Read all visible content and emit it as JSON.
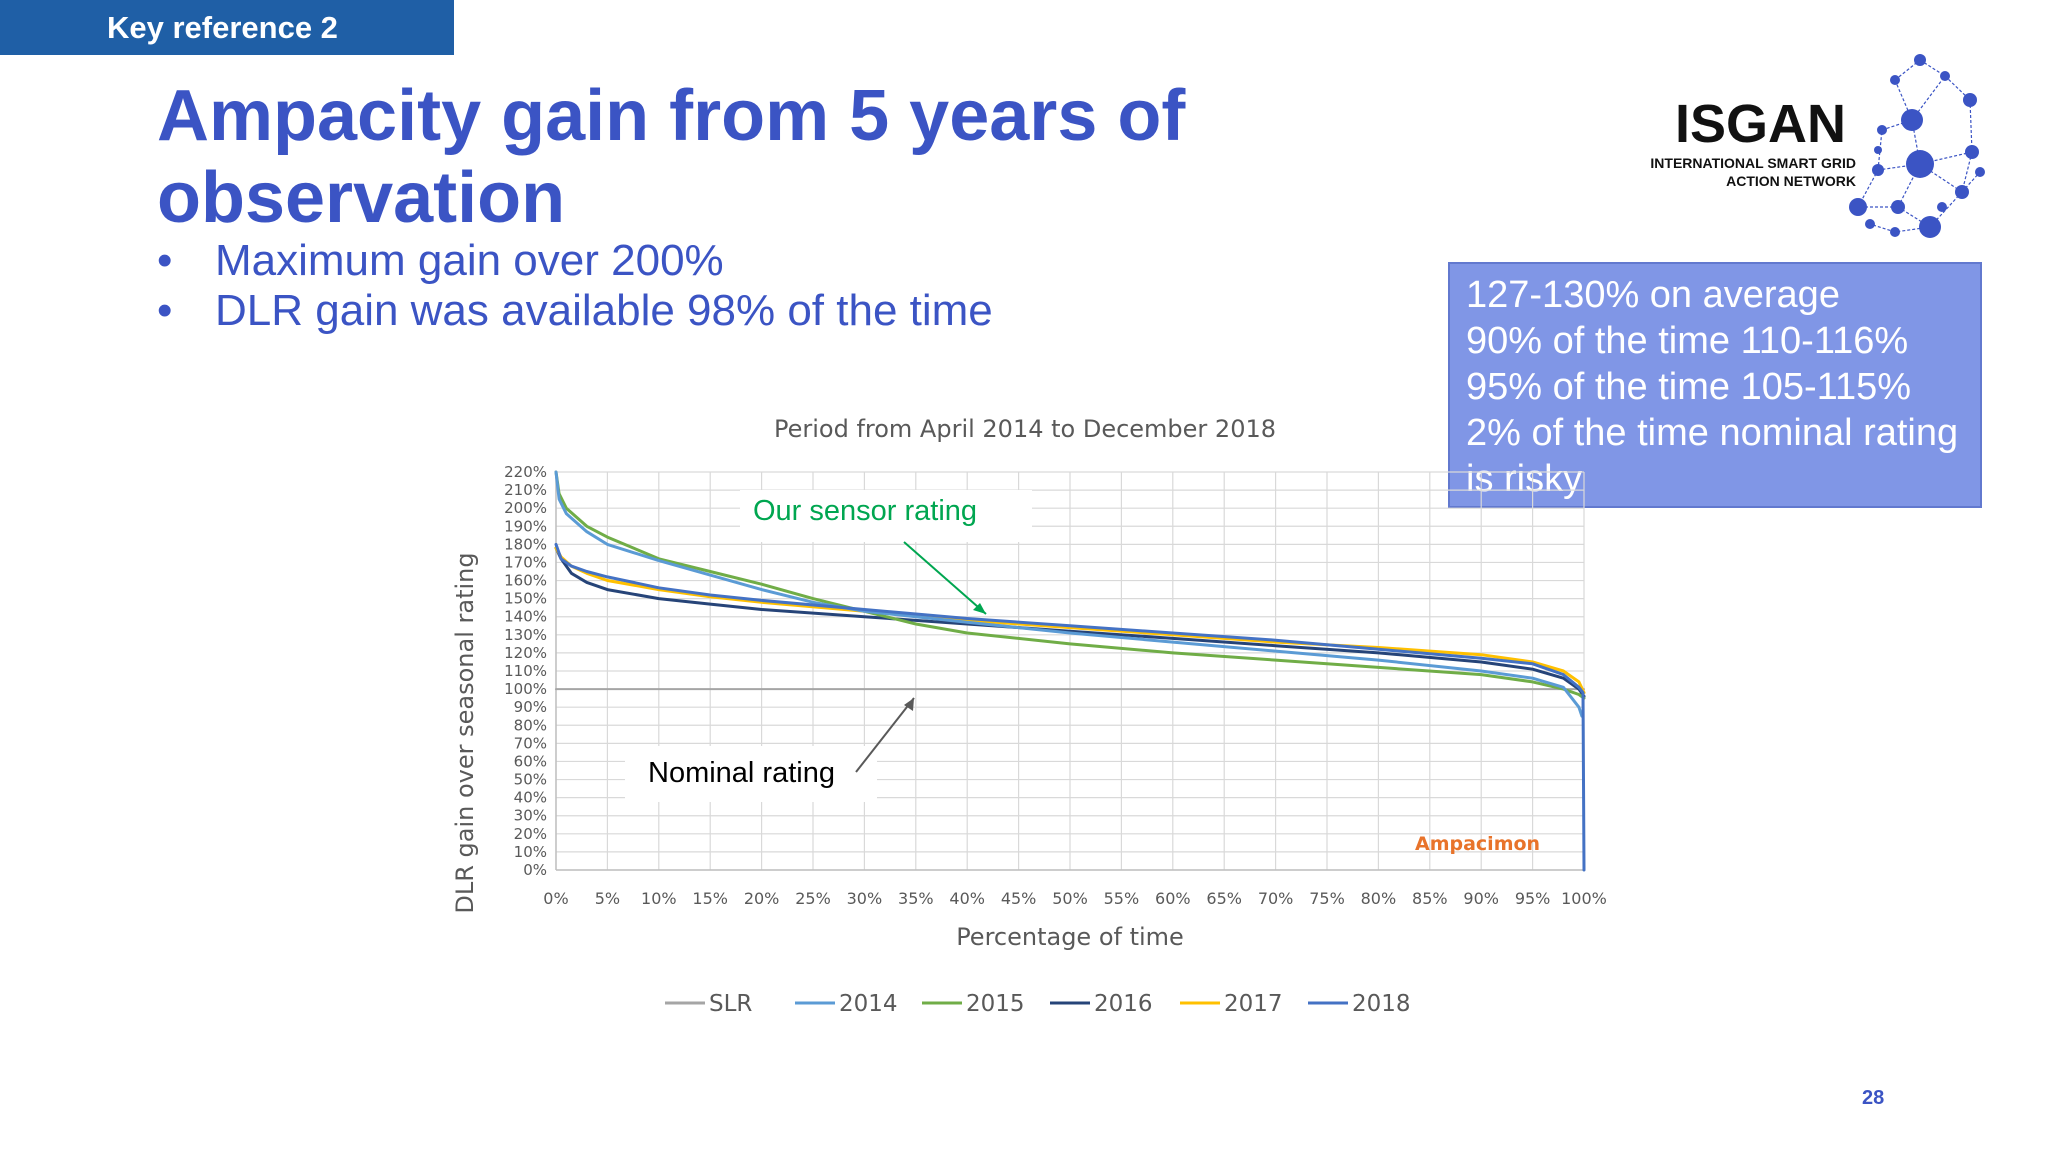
{
  "slide": {
    "tag": "Key reference 2",
    "title_line1": "Ampacity gain from 5 years of",
    "title_line2": "observation",
    "bullets": [
      "Maximum gain over 200%",
      "DLR gain was available 98% of the time"
    ],
    "bullet_glyph": "•",
    "page_number": "28"
  },
  "callout": {
    "lines": [
      "127-130% on average",
      "90% of the time 110-116%",
      "95% of the time 105-115%",
      "2% of the time nominal rating",
      "is risky"
    ]
  },
  "logo": {
    "name": "ISGAN",
    "line1": "INTERNATIONAL SMART GRID",
    "line2": "ACTION NETWORK"
  },
  "colors": {
    "title": "#3b54c4",
    "tag_bg": "#1f5fa6",
    "callout_bg": "#8096e6",
    "SLR": "#a5a5a5",
    "2014": "#5b9bd5",
    "2015": "#70ad47",
    "2016": "#264478",
    "2017": "#ffc000",
    "2018": "#4472c4"
  },
  "chart_data": {
    "type": "line",
    "title": "Period from April 2014 to December 2018",
    "xlabel": "Percentage of time",
    "ylabel": "DLR gain over seasonal rating",
    "xlim": [
      0,
      100
    ],
    "ylim": [
      0,
      220
    ],
    "x_ticks": [
      "0%",
      "5%",
      "10%",
      "15%",
      "20%",
      "25%",
      "30%",
      "35%",
      "40%",
      "45%",
      "50%",
      "55%",
      "60%",
      "65%",
      "70%",
      "75%",
      "80%",
      "85%",
      "90%",
      "95%",
      "100%"
    ],
    "y_ticks": [
      "0%",
      "10%",
      "20%",
      "30%",
      "40%",
      "50%",
      "60%",
      "70%",
      "80%",
      "90%",
      "100%",
      "110%",
      "120%",
      "130%",
      "140%",
      "150%",
      "160%",
      "170%",
      "180%",
      "190%",
      "200%",
      "210%",
      "220%"
    ],
    "grid": true,
    "legend_position": "bottom",
    "series": [
      {
        "name": "SLR",
        "x": [
          0,
          100
        ],
        "values": [
          100,
          100
        ]
      },
      {
        "name": "2014",
        "x": [
          0,
          0.3,
          1,
          3,
          5,
          10,
          15,
          20,
          25,
          30,
          40,
          50,
          60,
          70,
          80,
          90,
          95,
          98,
          99.5,
          99.8
        ],
        "values": [
          220,
          205,
          197,
          187,
          180,
          171,
          163,
          155,
          148,
          143,
          137,
          131,
          126,
          121,
          116,
          110,
          106,
          101,
          90,
          85
        ]
      },
      {
        "name": "2015",
        "x": [
          0,
          0.3,
          1,
          3,
          5,
          10,
          15,
          20,
          25,
          30,
          35,
          40,
          50,
          60,
          70,
          80,
          90,
          95,
          98,
          99.5,
          100
        ],
        "values": [
          220,
          208,
          200,
          190,
          184,
          172,
          165,
          158,
          150,
          143,
          136,
          131,
          125,
          120,
          116,
          112,
          108,
          104,
          100,
          97,
          95
        ]
      },
      {
        "name": "2016",
        "x": [
          0,
          0.5,
          1.5,
          3,
          5,
          10,
          15,
          20,
          30,
          40,
          50,
          60,
          70,
          80,
          90,
          95,
          98,
          99.5,
          100
        ],
        "values": [
          178,
          172,
          164,
          159,
          155,
          150,
          147,
          144,
          140,
          136,
          132,
          128,
          124,
          120,
          115,
          111,
          106,
          100,
          96
        ]
      },
      {
        "name": "2017",
        "x": [
          0,
          0.5,
          1.5,
          3,
          5,
          10,
          15,
          20,
          30,
          40,
          50,
          60,
          70,
          80,
          90,
          95,
          98,
          99.5,
          100
        ],
        "values": [
          178,
          173,
          168,
          164,
          160,
          155,
          151,
          148,
          143,
          138,
          134,
          130,
          126,
          123,
          119,
          115,
          110,
          104,
          98
        ]
      },
      {
        "name": "2018",
        "x": [
          0,
          0.5,
          1.5,
          3,
          5,
          10,
          15,
          20,
          30,
          40,
          50,
          60,
          70,
          80,
          90,
          95,
          98,
          99.5,
          99.9,
          100
        ],
        "values": [
          180,
          172,
          168,
          165,
          162,
          156,
          152,
          149,
          144,
          139,
          135,
          131,
          127,
          122,
          117,
          114,
          108,
          101,
          98,
          0
        ]
      }
    ],
    "annotations": [
      {
        "text": "Our sensor rating",
        "color": "#00a650",
        "points_to": [
          42,
          140
        ]
      },
      {
        "text": "Nominal rating",
        "color": "#000000",
        "points_to": [
          35,
          100
        ]
      }
    ],
    "watermark": "Ampacimon"
  }
}
